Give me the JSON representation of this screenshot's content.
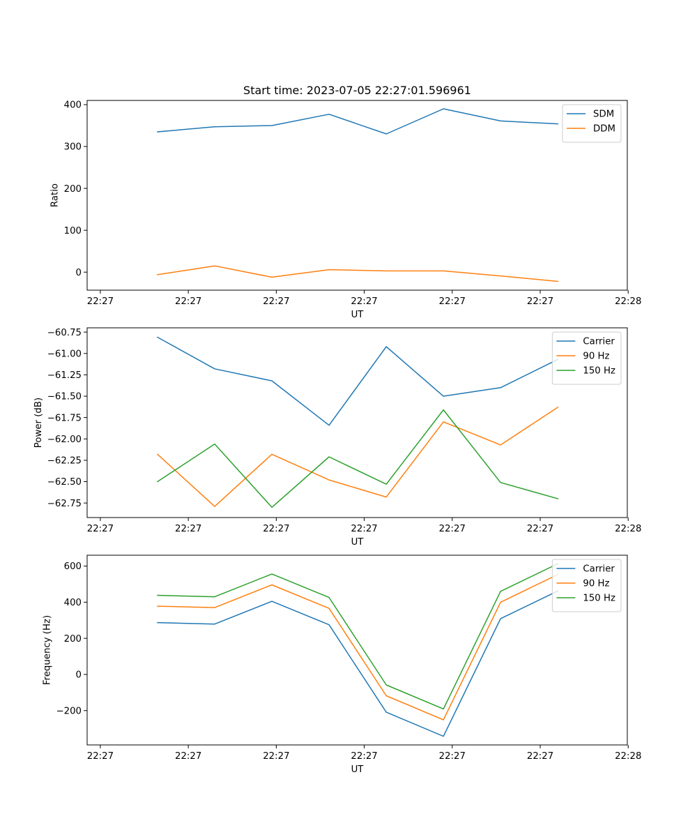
{
  "chart_data": [
    {
      "type": "line",
      "title": "Start time: 2023-07-05 22:27:01.596961",
      "xlabel": "UT",
      "ylabel": "Ratio",
      "x": [
        0.65,
        1.3,
        1.95,
        2.6,
        3.25,
        3.9,
        4.55,
        5.2
      ],
      "xlim": [
        -0.15,
        5.99
      ],
      "xticks": [
        0,
        1,
        2,
        3,
        4,
        5,
        6
      ],
      "xticklabels": [
        "22:27",
        "22:27",
        "22:27",
        "22:27",
        "22:27",
        "22:27",
        "22:28"
      ],
      "ylim": [
        -43,
        410
      ],
      "yticks": [
        0,
        100,
        200,
        300,
        400
      ],
      "yticklabels": [
        "0",
        "100",
        "200",
        "300",
        "400"
      ],
      "legend_loc": "upper right",
      "series": [
        {
          "name": "SDM",
          "color": "#1f77b4",
          "values": [
            335,
            347,
            350,
            377,
            330,
            390,
            361,
            354
          ]
        },
        {
          "name": "DDM",
          "color": "#ff7f0e",
          "values": [
            -6,
            15,
            -12,
            6,
            3,
            3,
            -9,
            -22
          ]
        }
      ]
    },
    {
      "type": "line",
      "xlabel": "UT",
      "ylabel": "Power (dB)",
      "x": [
        0.65,
        1.3,
        1.95,
        2.6,
        3.25,
        3.9,
        4.55,
        5.2
      ],
      "xlim": [
        -0.15,
        5.99
      ],
      "xticks": [
        0,
        1,
        2,
        3,
        4,
        5,
        6
      ],
      "xticklabels": [
        "22:27",
        "22:27",
        "22:27",
        "22:27",
        "22:27",
        "22:27",
        "22:28"
      ],
      "ylim": [
        -62.92,
        -60.7
      ],
      "yticks": [
        -62.75,
        -62.5,
        -62.25,
        -62.0,
        -61.75,
        -61.5,
        -61.25,
        -61.0,
        -60.75
      ],
      "yticklabels": [
        "−62.75",
        "−62.50",
        "−62.25",
        "−62.00",
        "−61.75",
        "−61.50",
        "−61.25",
        "−61.00",
        "−60.75"
      ],
      "legend_loc": "upper right",
      "series": [
        {
          "name": "Carrier",
          "color": "#1f77b4",
          "values": [
            -60.81,
            -61.18,
            -61.32,
            -61.84,
            -60.92,
            -61.5,
            -61.4,
            -61.07
          ]
        },
        {
          "name": "90 Hz",
          "color": "#ff7f0e",
          "values": [
            -62.18,
            -62.79,
            -62.18,
            -62.48,
            -62.68,
            -61.8,
            -62.07,
            -61.63
          ]
        },
        {
          "name": "150 Hz",
          "color": "#2ca02c",
          "values": [
            -62.5,
            -62.06,
            -62.8,
            -62.21,
            -62.53,
            -61.66,
            -62.51,
            -62.7
          ]
        }
      ]
    },
    {
      "type": "line",
      "xlabel": "UT",
      "ylabel": "Frequency (Hz)",
      "x": [
        0.65,
        1.3,
        1.95,
        2.6,
        3.25,
        3.9,
        4.55,
        5.2
      ],
      "xlim": [
        -0.15,
        5.99
      ],
      "xticks": [
        0,
        1,
        2,
        3,
        4,
        5,
        6
      ],
      "xticklabels": [
        "22:27",
        "22:27",
        "22:27",
        "22:27",
        "22:27",
        "22:27",
        "22:28"
      ],
      "ylim": [
        -390,
        660
      ],
      "yticks": [
        -200,
        0,
        200,
        400,
        600
      ],
      "yticklabels": [
        "−200",
        "0",
        "200",
        "400",
        "600"
      ],
      "legend_loc": "upper right",
      "series": [
        {
          "name": "Carrier",
          "color": "#1f77b4",
          "values": [
            287,
            279,
            405,
            275,
            -209,
            -342,
            309,
            462
          ]
        },
        {
          "name": "90 Hz",
          "color": "#ff7f0e",
          "values": [
            378,
            370,
            496,
            366,
            -118,
            -251,
            400,
            553
          ]
        },
        {
          "name": "150 Hz",
          "color": "#2ca02c",
          "values": [
            438,
            430,
            556,
            426,
            -58,
            -191,
            460,
            613
          ]
        }
      ]
    }
  ]
}
